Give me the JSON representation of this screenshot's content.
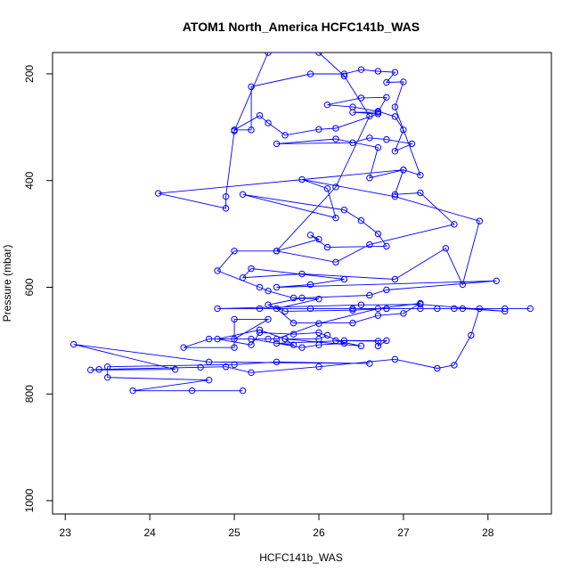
{
  "chart_data": {
    "type": "line",
    "title": "ATOM1 North_America HCFC141b_WAS",
    "xlabel": "HCFC141b_WAS",
    "ylabel": "Pressure (mbar)",
    "xlim": [
      22.85,
      28.75
    ],
    "ylim": [
      1025,
      160
    ],
    "y_reversed": true,
    "x_ticks": [
      23,
      24,
      25,
      26,
      27,
      28
    ],
    "y_ticks": [
      200,
      400,
      600,
      800,
      1000
    ],
    "marker": "open-circle",
    "grid": false,
    "color": "#0000ff",
    "series": [
      {
        "points": [
          [
            25.1,
            794
          ],
          [
            24.5,
            794
          ],
          [
            23.8,
            794
          ],
          [
            24.7,
            774
          ],
          [
            23.5,
            769
          ],
          [
            23.5,
            749
          ],
          [
            25.0,
            745
          ],
          [
            25.5,
            740
          ],
          [
            26.6,
            743
          ],
          [
            24.7,
            740
          ],
          [
            23.1,
            707
          ],
          [
            24.3,
            754
          ],
          [
            23.3,
            755
          ],
          [
            23.4,
            754
          ],
          [
            24.6,
            750
          ],
          [
            24.9,
            749
          ],
          [
            25.2,
            760
          ],
          [
            26.0,
            749
          ],
          [
            26.9,
            735
          ],
          [
            27.4,
            752
          ],
          [
            27.6,
            746
          ],
          [
            27.8,
            690
          ],
          [
            27.9,
            640
          ],
          [
            28.2,
            640
          ],
          [
            28.5,
            640
          ],
          [
            27.6,
            640
          ],
          [
            27.2,
            640
          ],
          [
            26.8,
            640
          ],
          [
            26.4,
            640
          ],
          [
            25.9,
            640
          ],
          [
            25.3,
            640
          ],
          [
            24.8,
            640
          ],
          [
            26.5,
            633
          ],
          [
            27.2,
            632
          ],
          [
            28.2,
            645
          ],
          [
            27.7,
            640
          ],
          [
            27.4,
            640
          ],
          [
            26.8,
            640
          ],
          [
            26.4,
            643
          ],
          [
            25.6,
            645
          ],
          [
            25.4,
            633
          ],
          [
            25.8,
            620
          ],
          [
            26.6,
            615
          ],
          [
            26.8,
            605
          ],
          [
            28.1,
            588
          ],
          [
            25.5,
            600
          ],
          [
            25.9,
            595
          ],
          [
            26.3,
            585
          ],
          [
            25.2,
            565
          ],
          [
            25.1,
            582
          ],
          [
            25.8,
            575
          ],
          [
            26.9,
            585
          ],
          [
            27.5,
            527
          ],
          [
            27.7,
            595
          ],
          [
            27.9,
            476
          ],
          [
            26.9,
            430
          ],
          [
            25.8,
            398
          ],
          [
            26.1,
            415
          ],
          [
            26.2,
            470
          ],
          [
            25.1,
            426
          ],
          [
            26.3,
            455
          ],
          [
            26.5,
            475
          ],
          [
            26.7,
            500
          ],
          [
            26.8,
            523
          ],
          [
            26.1,
            525
          ],
          [
            25.9,
            502
          ],
          [
            26.0,
            510
          ],
          [
            25.5,
            532
          ],
          [
            26.2,
            553
          ],
          [
            26.6,
            520
          ],
          [
            27.6,
            482
          ],
          [
            27.2,
            423
          ],
          [
            26.9,
            426
          ],
          [
            27.0,
            380
          ],
          [
            26.6,
            395
          ],
          [
            26.7,
            338
          ],
          [
            26.2,
            322
          ],
          [
            25.5,
            331
          ],
          [
            26.4,
            329
          ],
          [
            26.6,
            320
          ],
          [
            26.8,
            323
          ],
          [
            27.1,
            331
          ],
          [
            26.9,
            345
          ],
          [
            27.0,
            305
          ],
          [
            26.9,
            280
          ],
          [
            26.7,
            270
          ],
          [
            26.4,
            262
          ],
          [
            26.1,
            258
          ],
          [
            26.5,
            245
          ],
          [
            26.8,
            244
          ],
          [
            26.7,
            272
          ],
          [
            26.4,
            272
          ],
          [
            26.7,
            275
          ],
          [
            26.2,
            302
          ],
          [
            26.0,
            304
          ],
          [
            25.6,
            315
          ],
          [
            25.4,
            292
          ],
          [
            25.3,
            278
          ],
          [
            25.0,
            305
          ],
          [
            25.2,
            305
          ],
          [
            25.2,
            224
          ],
          [
            25.9,
            200
          ],
          [
            26.3,
            200
          ],
          [
            26.5,
            192
          ],
          [
            26.7,
            195
          ],
          [
            26.9,
            197
          ],
          [
            26.8,
            216
          ],
          [
            27.0,
            215
          ],
          [
            26.9,
            262
          ],
          [
            27.2,
            390
          ],
          [
            27.0,
            380
          ],
          [
            24.1,
            424
          ],
          [
            24.9,
            452
          ],
          [
            24.9,
            430
          ],
          [
            25.0,
            307
          ],
          [
            25.4,
            160
          ],
          [
            26.0,
            160
          ],
          [
            26.3,
            204
          ],
          [
            26.6,
            279
          ],
          [
            26.2,
            412
          ],
          [
            25.5,
            532
          ],
          [
            25.0,
            532
          ],
          [
            24.8,
            569
          ],
          [
            25.3,
            600
          ],
          [
            25.4,
            607
          ],
          [
            25.7,
            620
          ],
          [
            26.0,
            622
          ],
          [
            25.5,
            640
          ],
          [
            25.7,
            667
          ],
          [
            26.4,
            667
          ],
          [
            26.7,
            653
          ],
          [
            27.0,
            649
          ],
          [
            27.2,
            630
          ],
          [
            26.7,
            640
          ],
          [
            26.0,
            668
          ],
          [
            25.5,
            697
          ],
          [
            25.4,
            697
          ],
          [
            25.0,
            697
          ],
          [
            25.4,
            660
          ],
          [
            25.0,
            660
          ],
          [
            25.0,
            713
          ],
          [
            24.4,
            713
          ],
          [
            24.7,
            697
          ],
          [
            25.2,
            697
          ],
          [
            25.8,
            713
          ],
          [
            26.0,
            708
          ],
          [
            26.3,
            705
          ],
          [
            26.0,
            685
          ],
          [
            25.7,
            688
          ],
          [
            25.3,
            685
          ],
          [
            25.2,
            708
          ],
          [
            24.8,
            697
          ],
          [
            25.3,
            680
          ],
          [
            25.6,
            697
          ],
          [
            25.7,
            708
          ],
          [
            25.5,
            705
          ],
          [
            26.3,
            700
          ],
          [
            26.8,
            700
          ],
          [
            26.7,
            710
          ],
          [
            26.7,
            701
          ],
          [
            26.2,
            700
          ],
          [
            26.5,
            710
          ],
          [
            25.6,
            697
          ],
          [
            26.0,
            697
          ],
          [
            26.1,
            690
          ]
        ]
      }
    ]
  }
}
